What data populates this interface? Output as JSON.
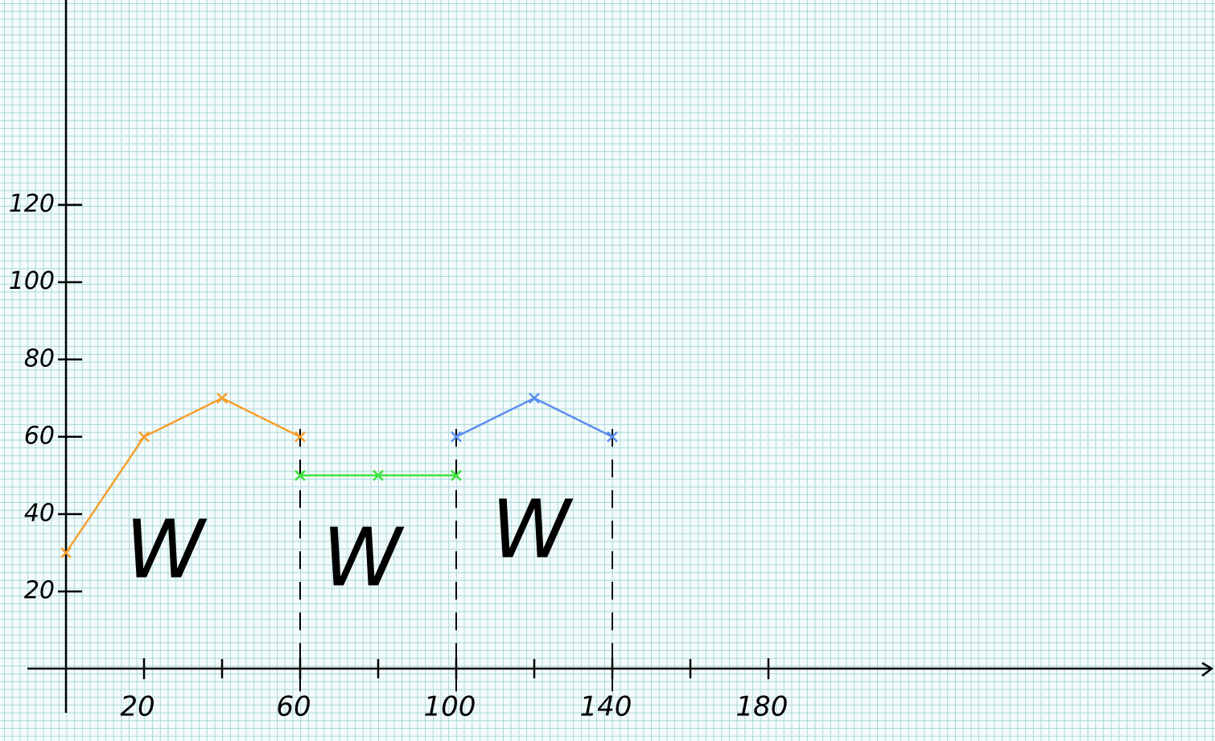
{
  "chart_data": {
    "type": "line",
    "series": [
      {
        "color": "#f5a030",
        "x": [
          0,
          20,
          40,
          60
        ],
        "values": [
          30,
          60,
          70,
          60
        ]
      },
      {
        "color": "#3ee23e",
        "x": [
          60,
          80,
          100
        ],
        "values": [
          50,
          50,
          50
        ]
      },
      {
        "color": "#5b8ef0",
        "x": [
          100,
          120,
          140
        ],
        "values": [
          60,
          70,
          60
        ]
      }
    ],
    "xlim": [
      -10,
      292
    ],
    "ylim": [
      -11,
      173
    ],
    "xticks": [
      20,
      60,
      100,
      140,
      180
    ],
    "minor_xticks": [
      40,
      80,
      120,
      160
    ],
    "yticks": [
      20,
      40,
      60,
      80,
      100,
      120
    ],
    "dashed_drops": [
      60,
      100,
      140
    ],
    "annotations": [
      "W",
      "W",
      "W"
    ]
  }
}
